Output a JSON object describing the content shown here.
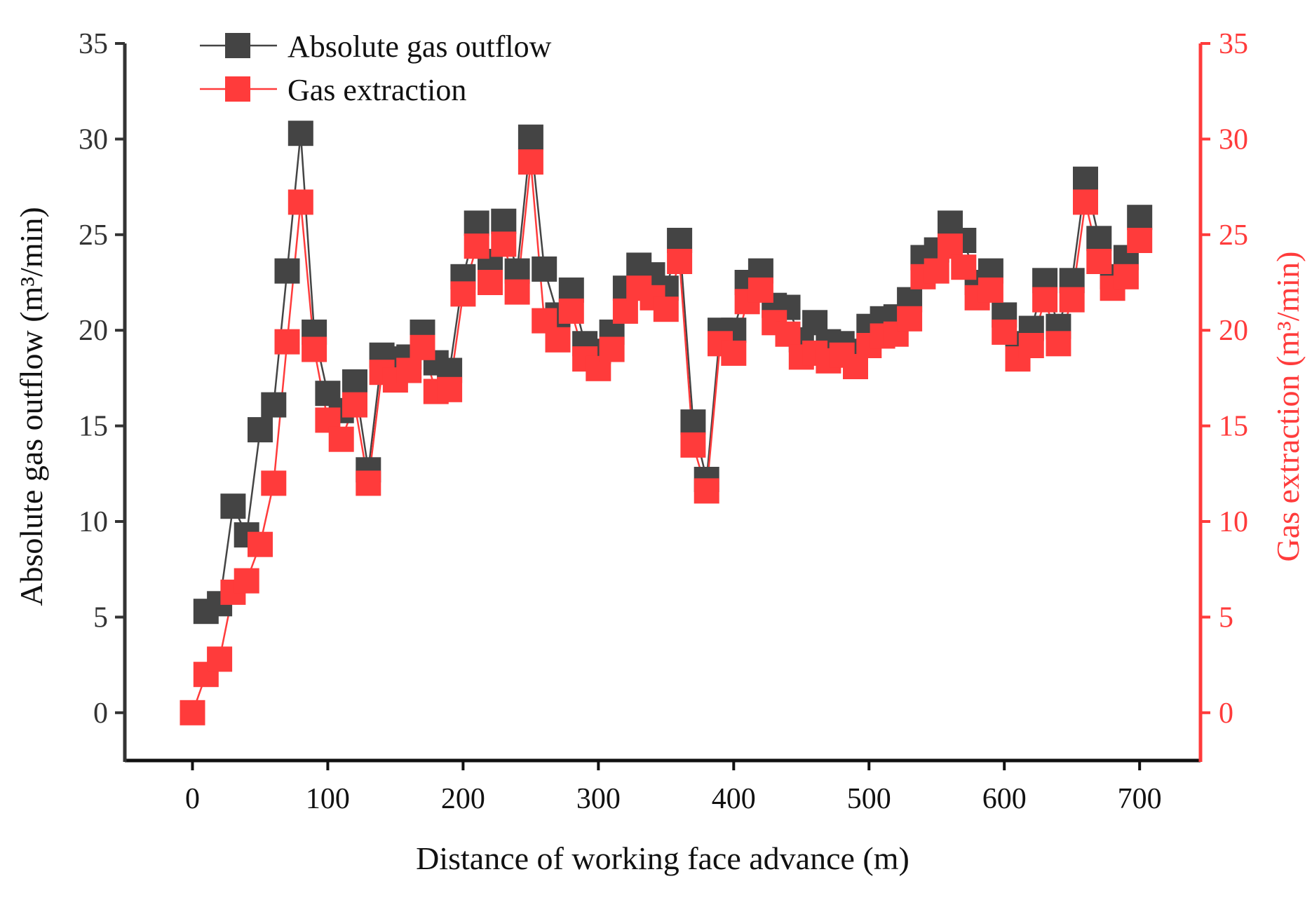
{
  "chart_data": {
    "type": "line",
    "title": "",
    "xlabel": "Distance of working face advance (m)",
    "ylabel_left": "Absolute gas outflow (m³/min)",
    "ylabel_right": "Gas extraction (m³/min)",
    "xlim": [
      -50,
      745
    ],
    "ylim_left": [
      -2.5,
      35
    ],
    "ylim_right": [
      -2.5,
      35
    ],
    "xticks": [
      "0",
      "100",
      "200",
      "300",
      "400",
      "500",
      "600",
      "700"
    ],
    "yticks_left": [
      "0",
      "5",
      "10",
      "15",
      "20",
      "25",
      "30",
      "35"
    ],
    "yticks_right": [
      "0",
      "5",
      "10",
      "15",
      "20",
      "25",
      "30",
      "35"
    ],
    "grid": false,
    "legend_position": "top-left",
    "colors": {
      "left_axis": "#333333",
      "right_axis": "#ff3b3b",
      "abs": "#444444",
      "gas": "#ff3b3b"
    },
    "series": [
      {
        "name": "Absolute gas outflow",
        "axis": "left",
        "color": "#444444",
        "x": [
          10,
          20,
          30,
          40,
          50,
          60,
          70,
          80,
          90,
          100,
          110,
          120,
          130,
          140,
          150,
          160,
          170,
          180,
          190,
          200,
          210,
          220,
          230,
          240,
          250,
          260,
          270,
          280,
          290,
          300,
          310,
          320,
          330,
          340,
          350,
          360,
          370,
          380,
          390,
          400,
          410,
          420,
          430,
          440,
          450,
          460,
          470,
          480,
          490,
          500,
          510,
          520,
          530,
          540,
          550,
          560,
          570,
          580,
          590,
          600,
          610,
          620,
          630,
          640,
          650,
          660,
          670,
          680,
          690,
          700
        ],
        "values": [
          5.3,
          5.7,
          10.8,
          9.3,
          14.8,
          16.1,
          23.1,
          30.3,
          19.9,
          16.7,
          15.8,
          17.3,
          12.7,
          18.7,
          18.5,
          18.6,
          19.9,
          18.3,
          17.9,
          22.8,
          25.6,
          23.6,
          25.7,
          23.1,
          30.1,
          23.2,
          20.8,
          22.1,
          19.3,
          18.9,
          19.9,
          22.2,
          23.4,
          22.9,
          22.2,
          24.7,
          15.2,
          12.2,
          20.0,
          20.0,
          22.5,
          23.1,
          21.3,
          21.2,
          19.5,
          20.4,
          19.4,
          19.3,
          18.9,
          20.2,
          20.6,
          20.7,
          21.6,
          23.8,
          24.2,
          25.6,
          24.7,
          22.5,
          23.1,
          20.8,
          19.3,
          20.1,
          22.6,
          20.2,
          22.6,
          27.9,
          24.8,
          22.8,
          23.8,
          25.9
        ]
      },
      {
        "name": "Gas extraction",
        "axis": "right",
        "color": "#ff3b3b",
        "x": [
          0,
          10,
          20,
          30,
          40,
          50,
          60,
          70,
          80,
          90,
          100,
          110,
          120,
          130,
          140,
          150,
          160,
          170,
          180,
          190,
          200,
          210,
          220,
          230,
          240,
          250,
          260,
          270,
          280,
          290,
          300,
          310,
          320,
          330,
          340,
          350,
          360,
          370,
          380,
          390,
          400,
          410,
          420,
          430,
          440,
          450,
          460,
          470,
          480,
          490,
          500,
          510,
          520,
          530,
          540,
          550,
          560,
          570,
          580,
          590,
          600,
          610,
          620,
          630,
          640,
          650,
          660,
          670,
          680,
          690,
          700
        ],
        "values": [
          0.0,
          2.0,
          2.8,
          6.3,
          6.9,
          8.8,
          12.0,
          19.4,
          26.7,
          19.0,
          15.3,
          14.3,
          16.1,
          12.0,
          17.8,
          17.4,
          17.9,
          19.1,
          16.8,
          16.9,
          21.9,
          24.4,
          22.5,
          24.5,
          22.0,
          28.8,
          20.5,
          19.5,
          21.0,
          18.5,
          18.0,
          19.0,
          21.0,
          22.2,
          21.7,
          21.1,
          23.6,
          14.0,
          11.6,
          19.3,
          18.8,
          21.5,
          22.1,
          20.4,
          19.8,
          18.6,
          18.8,
          18.4,
          18.7,
          18.1,
          19.2,
          19.7,
          19.8,
          20.6,
          22.8,
          23.1,
          24.4,
          23.3,
          21.7,
          22.1,
          19.9,
          18.5,
          19.2,
          21.6,
          19.3,
          21.6,
          26.7,
          23.6,
          22.2,
          22.8,
          24.7
        ]
      }
    ]
  }
}
